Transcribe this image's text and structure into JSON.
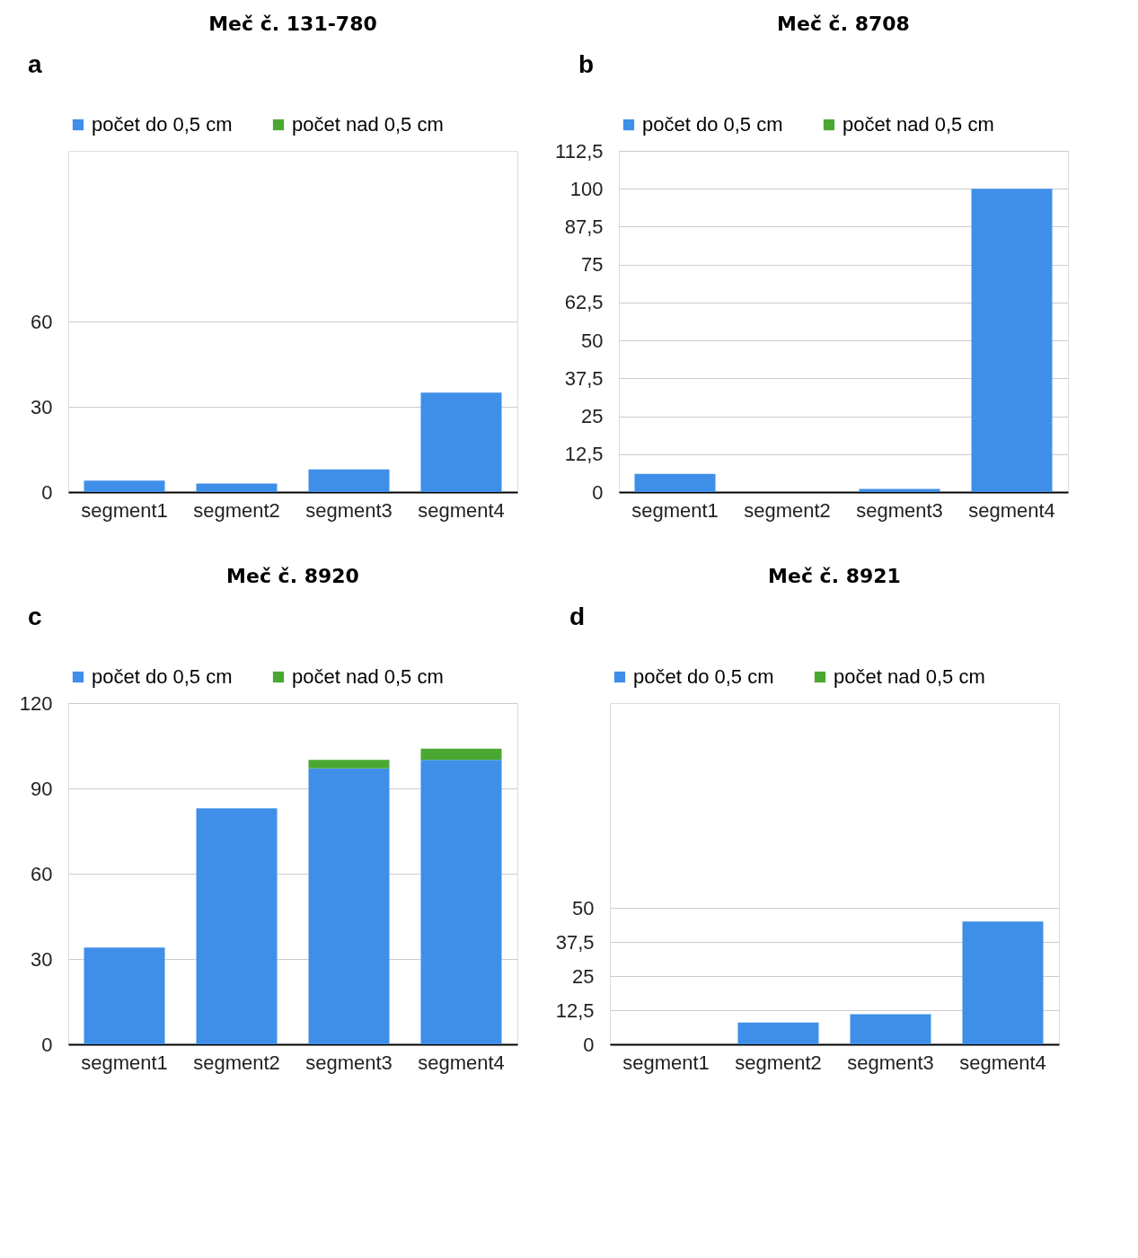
{
  "chart_data": [
    {
      "type": "bar",
      "stacked": true,
      "title": "Meč č. 131-780",
      "annotations": [
        "a"
      ],
      "categories": [
        "segment1",
        "segment2",
        "segment3",
        "segment4"
      ],
      "series": [
        {
          "name": "počet do 0,5 cm",
          "color": "#3f8fe8",
          "values": [
            4,
            3,
            8,
            35
          ]
        },
        {
          "name": "počet nad 0,5 cm",
          "color": "#4aa832",
          "values": [
            0,
            0,
            0,
            0
          ]
        }
      ],
      "ylim": [
        0,
        120
      ],
      "yticks": [
        0,
        30,
        60
      ],
      "grid": "y",
      "legend": "top"
    },
    {
      "type": "bar",
      "stacked": true,
      "title": "Meč č. 8708",
      "annotations": [
        "b"
      ],
      "categories": [
        "segment1",
        "segment2",
        "segment3",
        "segment4"
      ],
      "series": [
        {
          "name": "počet do 0,5 cm",
          "color": "#3f8fe8",
          "values": [
            6,
            0,
            1,
            100
          ]
        },
        {
          "name": "počet nad 0,5 cm",
          "color": "#4aa832",
          "values": [
            0,
            0,
            0,
            0
          ]
        }
      ],
      "ylim": [
        0,
        112.5
      ],
      "yticks": [
        0,
        {
          "value": 12.5,
          "label": "12,5"
        },
        25,
        {
          "value": 37.5,
          "label": "37,5"
        },
        50,
        {
          "value": 62.5,
          "label": "62,5"
        },
        75,
        {
          "value": 87.5,
          "label": "87,5"
        },
        100,
        {
          "value": 112.5,
          "label": "112,5"
        }
      ],
      "grid": "y",
      "legend": "top"
    },
    {
      "type": "bar",
      "stacked": true,
      "title": "Meč č. 8920",
      "annotations": [
        "c"
      ],
      "categories": [
        "segment1",
        "segment2",
        "segment3",
        "segment4"
      ],
      "series": [
        {
          "name": "počet do 0,5 cm",
          "color": "#3f8fe8",
          "values": [
            34,
            83,
            97,
            100
          ]
        },
        {
          "name": "počet nad 0,5 cm",
          "color": "#4aa832",
          "values": [
            0,
            0,
            3,
            4
          ]
        }
      ],
      "ylim": [
        0,
        120
      ],
      "yticks": [
        0,
        30,
        60,
        90,
        120
      ],
      "grid": "y",
      "legend": "top"
    },
    {
      "type": "bar",
      "stacked": true,
      "title": "Meč č. 8921",
      "annotations": [
        "d"
      ],
      "categories": [
        "segment1",
        "segment2",
        "segment3",
        "segment4"
      ],
      "series": [
        {
          "name": "počet do 0,5 cm",
          "color": "#3f8fe8",
          "values": [
            0,
            8,
            11,
            45
          ]
        },
        {
          "name": "počet nad 0,5 cm",
          "color": "#4aa832",
          "values": [
            0,
            0,
            0,
            0
          ]
        }
      ],
      "ylim": [
        0,
        125
      ],
      "yticks": [
        0,
        {
          "value": 12.5,
          "label": "12,5"
        },
        25,
        {
          "value": 37.5,
          "label": "37,5"
        },
        50
      ],
      "grid": "y",
      "legend": "top"
    }
  ]
}
